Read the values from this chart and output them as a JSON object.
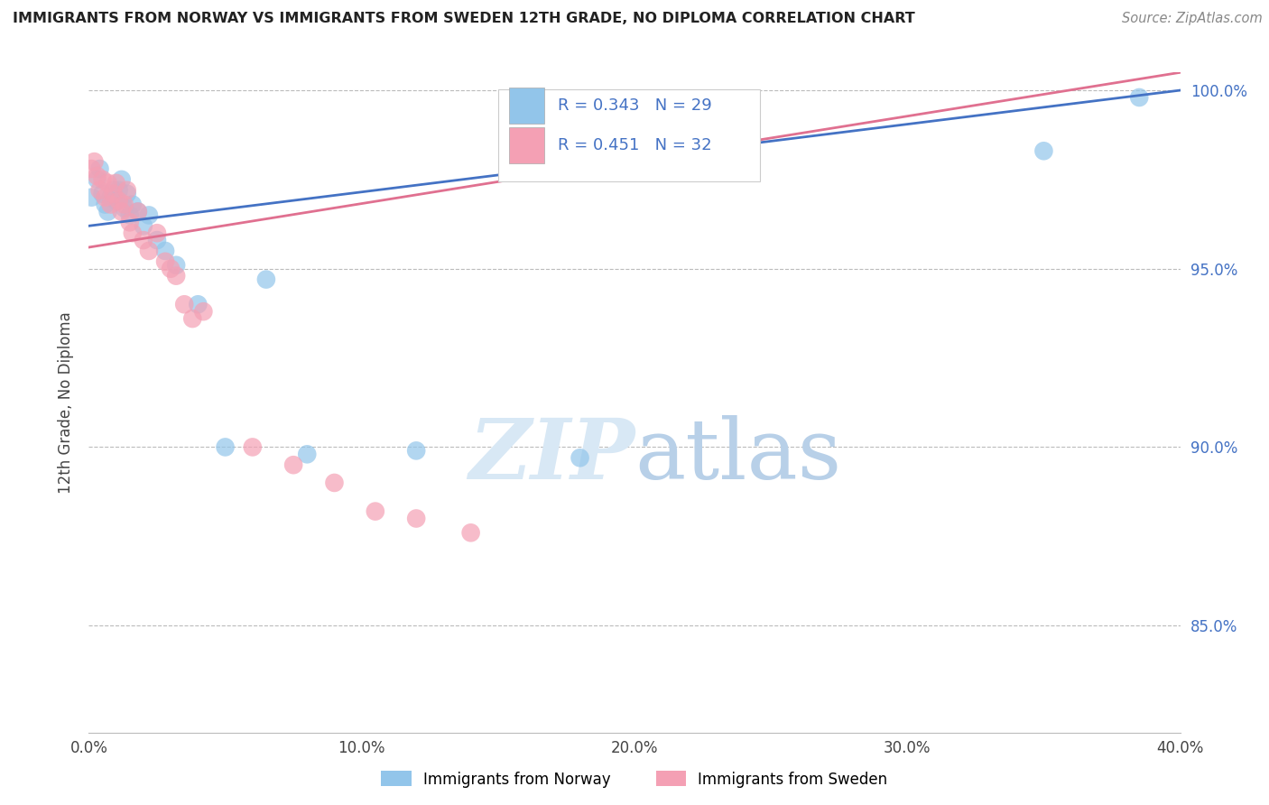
{
  "title": "IMMIGRANTS FROM NORWAY VS IMMIGRANTS FROM SWEDEN 12TH GRADE, NO DIPLOMA CORRELATION CHART",
  "source": "Source: ZipAtlas.com",
  "ylabel_label": "12th Grade, No Diploma",
  "legend_label1": "Immigrants from Norway",
  "legend_label2": "Immigrants from Sweden",
  "R_norway": 0.343,
  "N_norway": 29,
  "R_sweden": 0.451,
  "N_sweden": 32,
  "x_min": 0.0,
  "x_max": 0.4,
  "y_min": 0.82,
  "y_max": 1.005,
  "x_ticks": [
    0.0,
    0.1,
    0.2,
    0.3,
    0.4
  ],
  "y_ticks": [
    0.85,
    0.9,
    0.95,
    1.0
  ],
  "norway_x": [
    0.001,
    0.003,
    0.004,
    0.005,
    0.006,
    0.007,
    0.008,
    0.009,
    0.01,
    0.011,
    0.012,
    0.013,
    0.014,
    0.015,
    0.016,
    0.018,
    0.02,
    0.022,
    0.025,
    0.028,
    0.032,
    0.04,
    0.05,
    0.065,
    0.08,
    0.12,
    0.18,
    0.35,
    0.385
  ],
  "norway_y": [
    0.97,
    0.975,
    0.978,
    0.971,
    0.968,
    0.966,
    0.97,
    0.972,
    0.969,
    0.972,
    0.975,
    0.967,
    0.971,
    0.965,
    0.968,
    0.966,
    0.962,
    0.965,
    0.958,
    0.955,
    0.951,
    0.94,
    0.9,
    0.947,
    0.898,
    0.899,
    0.897,
    0.983,
    0.998
  ],
  "sweden_x": [
    0.001,
    0.002,
    0.003,
    0.004,
    0.005,
    0.006,
    0.007,
    0.008,
    0.009,
    0.01,
    0.011,
    0.012,
    0.013,
    0.014,
    0.015,
    0.016,
    0.018,
    0.02,
    0.022,
    0.025,
    0.028,
    0.03,
    0.032,
    0.035,
    0.038,
    0.042,
    0.06,
    0.075,
    0.09,
    0.105,
    0.12,
    0.14
  ],
  "sweden_y": [
    0.978,
    0.98,
    0.976,
    0.972,
    0.975,
    0.97,
    0.974,
    0.968,
    0.971,
    0.974,
    0.969,
    0.966,
    0.968,
    0.972,
    0.963,
    0.96,
    0.966,
    0.958,
    0.955,
    0.96,
    0.952,
    0.95,
    0.948,
    0.94,
    0.936,
    0.938,
    0.9,
    0.895,
    0.89,
    0.882,
    0.88,
    0.876
  ],
  "norway_color": "#92C5EA",
  "sweden_color": "#F4A0B4",
  "norway_line_color": "#4472C4",
  "sweden_line_color": "#E07090",
  "watermark_zip": "ZIP",
  "watermark_atlas": "atlas",
  "background_color": "#FFFFFF"
}
